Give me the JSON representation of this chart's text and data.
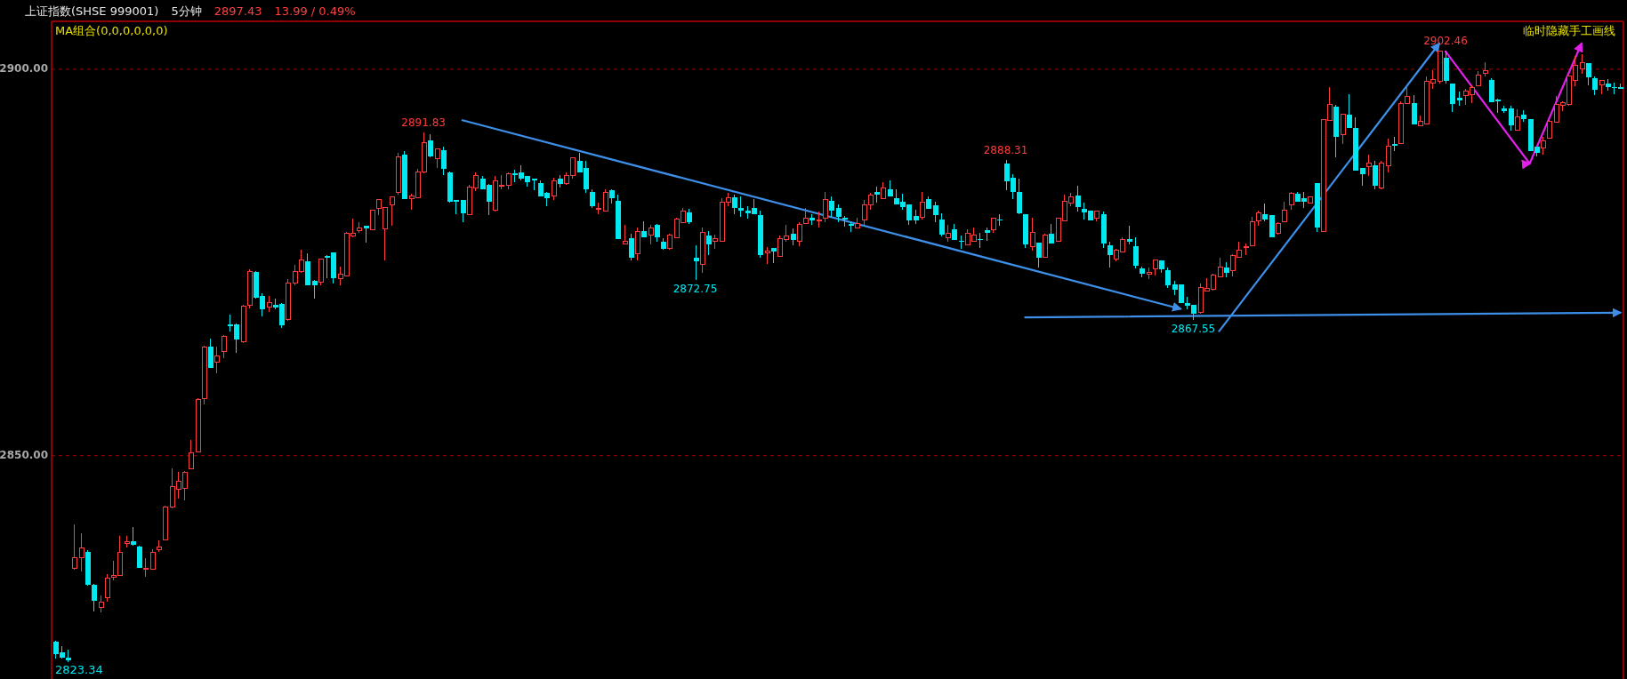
{
  "chart_data": {
    "type": "candlestick",
    "title": "上证指数(SHSE 999001)",
    "subtitle": "5分钟",
    "annotations": [
      "2897.43",
      "13.99 / 0.49%",
      "MA组合(0,0,0,0,0,0)",
      "临时隐藏手工画线",
      "2823.34",
      {
        "text": "2891.83",
        "y": 2891.83
      },
      {
        "text": "2872.75",
        "y": 2872.75
      },
      {
        "text": "2888.31",
        "y": 2888.31
      },
      {
        "text": "2867.55",
        "y": 2867.55
      },
      {
        "text": "2902.46",
        "y": 2902.46
      }
    ],
    "categories": [
      null,
      null,
      null,
      null,
      null,
      null,
      null,
      null,
      null,
      null,
      null,
      null,
      null,
      null,
      null,
      null,
      null,
      null,
      null,
      null,
      null,
      null,
      null,
      null,
      null,
      null,
      null,
      null,
      null,
      null,
      null,
      null,
      null,
      null,
      null,
      null,
      null,
      null,
      null,
      null,
      null,
      null,
      null,
      null,
      null,
      null,
      null,
      null,
      null,
      null,
      null,
      null,
      null,
      null,
      null,
      null,
      null,
      null,
      null,
      null,
      null,
      null,
      null,
      null,
      null,
      null,
      null,
      null,
      null,
      null,
      null,
      null,
      null,
      null,
      null,
      null,
      null,
      null,
      null,
      null,
      null,
      null,
      null,
      null,
      null,
      null,
      null,
      null,
      null,
      null,
      null,
      null,
      null,
      null,
      null,
      null,
      null,
      null,
      null,
      null,
      null,
      null,
      null,
      null,
      null,
      null,
      null,
      null,
      null,
      null,
      null,
      null,
      null,
      null,
      null,
      null,
      null,
      null,
      null,
      null,
      null,
      null,
      null,
      null,
      null,
      null,
      null,
      null,
      null,
      null,
      null,
      null,
      null,
      null,
      null,
      null,
      null,
      null,
      null,
      null,
      null,
      null,
      null,
      null,
      null,
      null,
      null,
      null,
      null,
      null,
      null,
      null,
      null,
      null,
      null,
      null,
      null,
      null,
      null,
      null,
      null,
      null,
      null,
      null,
      null,
      null,
      null,
      null,
      null,
      null,
      null,
      null,
      null,
      null,
      null,
      null,
      null,
      null,
      null,
      null,
      null,
      null,
      null,
      null,
      null,
      null,
      null,
      null,
      null,
      null,
      null,
      null,
      null,
      null,
      null,
      null,
      null,
      null,
      null,
      null,
      null,
      null,
      null,
      null,
      null,
      null,
      null,
      null,
      null,
      null,
      null,
      null,
      null,
      null,
      null,
      null,
      null,
      null,
      null,
      null,
      null,
      null,
      null,
      null,
      null,
      null,
      null,
      null,
      null,
      null,
      null,
      null,
      null,
      null,
      null,
      null,
      null,
      null,
      null,
      null,
      null,
      null,
      null
    ],
    "ohlc": [
      [
        2825.9,
        2826.1,
        2823.7,
        2824.3
      ],
      [
        2824.6,
        2825.3,
        2823.7,
        2823.9
      ],
      [
        2823.9,
        2824.9,
        2823.34,
        2823.5
      ],
      [
        2835.4,
        2841.1,
        2835.2,
        2836.8
      ],
      [
        2836.8,
        2840.0,
        2835.0,
        2838.1
      ],
      [
        2837.6,
        2837.8,
        2833.2,
        2833.3
      ],
      [
        2833.3,
        2833.4,
        2829.8,
        2831.2
      ],
      [
        2830.4,
        2831.9,
        2829.7,
        2831.1
      ],
      [
        2831.6,
        2834.7,
        2831.1,
        2834.1
      ],
      [
        2834.3,
        2836.4,
        2833.9,
        2834.5
      ],
      [
        2834.5,
        2839.6,
        2834.4,
        2837.5
      ],
      [
        2838.6,
        2839.6,
        2838.1,
        2838.9
      ],
      [
        2838.9,
        2840.8,
        2838.4,
        2838.5
      ],
      [
        2838.2,
        2838.3,
        2835.5,
        2835.5
      ],
      [
        2835.3,
        2836.7,
        2834.3,
        2835.4
      ],
      [
        2835.3,
        2837.9,
        2835.2,
        2837.5
      ],
      [
        2837.8,
        2839.0,
        2837.5,
        2838.2
      ],
      [
        2839.1,
        2843.5,
        2839.0,
        2843.4
      ],
      [
        2843.3,
        2848.4,
        2843.2,
        2846.0
      ],
      [
        2845.7,
        2847.9,
        2844.5,
        2846.7
      ],
      [
        2845.8,
        2848.0,
        2844.2,
        2847.8
      ],
      [
        2848.3,
        2852.0,
        2848.2,
        2850.4
      ],
      [
        2850.5,
        2857.4,
        2850.4,
        2857.3
      ],
      [
        2857.4,
        2864.2,
        2856.6,
        2864.1
      ],
      [
        2864.1,
        2865.2,
        2861.3,
        2861.4
      ],
      [
        2862.1,
        2864.1,
        2860.7,
        2862.9
      ],
      [
        2863.5,
        2865.6,
        2862.6,
        2865.4
      ],
      [
        2867.0,
        2868.3,
        2866.1,
        2866.8
      ],
      [
        2867.0,
        2867.1,
        2863.3,
        2865.0
      ],
      [
        2864.7,
        2869.5,
        2864.6,
        2869.3
      ],
      [
        2869.5,
        2874.1,
        2869.1,
        2873.8
      ],
      [
        2873.8,
        2873.9,
        2870.3,
        2870.4
      ],
      [
        2870.7,
        2871.0,
        2868.0,
        2868.9
      ],
      [
        2869.2,
        2870.7,
        2868.6,
        2869.8
      ],
      [
        2869.5,
        2870.3,
        2868.9,
        2869.2
      ],
      [
        2869.6,
        2869.7,
        2866.5,
        2866.9
      ],
      [
        2867.6,
        2872.8,
        2867.5,
        2872.3
      ],
      [
        2872.3,
        2874.7,
        2872.1,
        2873.8
      ],
      [
        2873.8,
        2876.6,
        2873.7,
        2875.3
      ],
      [
        2875.2,
        2876.2,
        2872.0,
        2872.1
      ],
      [
        2872.6,
        2872.7,
        2870.3,
        2872.1
      ],
      [
        2872.4,
        2875.5,
        2872.0,
        2875.4
      ],
      [
        2875.8,
        2875.9,
        2873.0,
        2875.6
      ],
      [
        2876.3,
        2876.3,
        2872.3,
        2873.0
      ],
      [
        2872.9,
        2874.5,
        2872.0,
        2873.5
      ],
      [
        2873.3,
        2878.9,
        2873.2,
        2878.8
      ],
      [
        2878.4,
        2880.7,
        2878.2,
        2878.8
      ],
      [
        2879.1,
        2880.2,
        2878.8,
        2879.5
      ],
      [
        2879.8,
        2879.8,
        2877.6,
        2879.4
      ],
      [
        2879.2,
        2881.8,
        2879.2,
        2881.8
      ],
      [
        2882.0,
        2883.2,
        2881.1,
        2883.2
      ],
      [
        2879.3,
        2882.2,
        2875.3,
        2882.1
      ],
      [
        2882.4,
        2883.5,
        2879.8,
        2883.5
      ],
      [
        2884.1,
        2889.2,
        2883.8,
        2888.7
      ],
      [
        2889.0,
        2889.4,
        2883.2,
        2883.2
      ],
      [
        2883.3,
        2883.9,
        2881.8,
        2883.6
      ],
      [
        2883.4,
        2887.1,
        2883.4,
        2886.7
      ],
      [
        2886.7,
        2891.83,
        2886.5,
        2890.5
      ],
      [
        2890.8,
        2891.6,
        2888.6,
        2888.7
      ],
      [
        2888.4,
        2889.7,
        2887.2,
        2889.7
      ],
      [
        2889.5,
        2890.0,
        2886.3,
        2887.1
      ],
      [
        2886.6,
        2886.8,
        2882.7,
        2882.9
      ],
      [
        2883.1,
        2883.1,
        2881.3,
        2882.8
      ],
      [
        2883.1,
        2883.1,
        2880.2,
        2881.4
      ],
      [
        2881.2,
        2885.0,
        2881.2,
        2884.7
      ],
      [
        2884.6,
        2886.6,
        2884.2,
        2886.2
      ],
      [
        2885.8,
        2886.2,
        2884.5,
        2884.5
      ],
      [
        2885.0,
        2885.2,
        2881.1,
        2882.8
      ],
      [
        2881.8,
        2886.2,
        2881.6,
        2885.6
      ],
      [
        2884.9,
        2886.3,
        2884.5,
        2885.0
      ],
      [
        2885.0,
        2886.7,
        2884.5,
        2886.5
      ],
      [
        2886.5,
        2887.0,
        2885.4,
        2886.3
      ],
      [
        2886.6,
        2887.6,
        2885.6,
        2885.9
      ],
      [
        2886.2,
        2886.2,
        2884.8,
        2885.4
      ],
      [
        2885.8,
        2885.8,
        2884.4,
        2885.6
      ],
      [
        2885.3,
        2885.6,
        2883.5,
        2883.5
      ],
      [
        2884.0,
        2884.1,
        2882.3,
        2883.3
      ],
      [
        2883.6,
        2886.0,
        2883.1,
        2885.6
      ],
      [
        2885.8,
        2886.3,
        2884.7,
        2885.1
      ],
      [
        2885.2,
        2886.6,
        2885.0,
        2886.3
      ],
      [
        2886.2,
        2888.5,
        2885.8,
        2888.5
      ],
      [
        2888.2,
        2889.2,
        2886.6,
        2886.6
      ],
      [
        2887.2,
        2888.1,
        2884.0,
        2884.5
      ],
      [
        2884.1,
        2884.5,
        2882.0,
        2882.3
      ],
      [
        2881.9,
        2882.7,
        2881.2,
        2882.0
      ],
      [
        2881.6,
        2884.5,
        2881.6,
        2884.1
      ],
      [
        2884.4,
        2884.5,
        2882.6,
        2883.3
      ],
      [
        2883.0,
        2883.8,
        2878.0,
        2878.0
      ],
      [
        2877.4,
        2879.9,
        2877.4,
        2877.7
      ],
      [
        2878.1,
        2878.7,
        2875.3,
        2875.6
      ],
      [
        2876.1,
        2879.5,
        2875.3,
        2879.0
      ],
      [
        2879.1,
        2880.3,
        2878.2,
        2878.2
      ],
      [
        2878.5,
        2879.9,
        2877.3,
        2879.5
      ],
      [
        2879.9,
        2880.0,
        2877.7,
        2878.2
      ],
      [
        2877.7,
        2878.1,
        2876.6,
        2876.8
      ],
      [
        2876.8,
        2878.7,
        2876.7,
        2878.6
      ],
      [
        2878.2,
        2880.8,
        2878.1,
        2880.6
      ],
      [
        2880.2,
        2882.1,
        2880.2,
        2881.6
      ],
      [
        2881.5,
        2881.9,
        2880.0,
        2880.2
      ],
      [
        2875.6,
        2877.2,
        2872.75,
        2875.2
      ],
      [
        2874.8,
        2879.5,
        2873.6,
        2878.9
      ],
      [
        2878.5,
        2879.1,
        2876.0,
        2877.3
      ],
      [
        2877.7,
        2878.6,
        2876.8,
        2878.1
      ],
      [
        2877.7,
        2883.3,
        2877.7,
        2882.8
      ],
      [
        2882.8,
        2884.0,
        2882.3,
        2883.4
      ],
      [
        2883.4,
        2883.8,
        2881.2,
        2882.0
      ],
      [
        2882.0,
        2883.6,
        2880.9,
        2881.7
      ],
      [
        2881.7,
        2882.3,
        2880.7,
        2881.4
      ],
      [
        2882.0,
        2883.2,
        2881.3,
        2881.3
      ],
      [
        2881.1,
        2881.7,
        2875.6,
        2876.0
      ],
      [
        2876.2,
        2877.0,
        2874.8,
        2876.5
      ],
      [
        2876.9,
        2876.9,
        2874.9,
        2876.4
      ],
      [
        2875.8,
        2878.5,
        2875.7,
        2878.1
      ],
      [
        2878.0,
        2879.9,
        2877.7,
        2878.4
      ],
      [
        2878.7,
        2879.4,
        2877.2,
        2877.9
      ],
      [
        2877.7,
        2880.2,
        2877.1,
        2879.9
      ],
      [
        2880.0,
        2882.0,
        2880.0,
        2880.7
      ],
      [
        2880.8,
        2881.3,
        2879.9,
        2880.4
      ],
      [
        2880.4,
        2881.6,
        2879.5,
        2880.5
      ],
      [
        2880.7,
        2884.1,
        2880.2,
        2883.1
      ],
      [
        2883.0,
        2883.5,
        2880.9,
        2881.7
      ],
      [
        2882.1,
        2882.5,
        2880.2,
        2880.9
      ],
      [
        2880.8,
        2881.0,
        2879.6,
        2880.6
      ],
      [
        2880.0,
        2880.2,
        2879.0,
        2879.8
      ],
      [
        2879.5,
        2880.8,
        2879.4,
        2880.0
      ],
      [
        2880.5,
        2883.1,
        2879.9,
        2882.5
      ],
      [
        2882.5,
        2884.0,
        2881.8,
        2883.7
      ],
      [
        2884.1,
        2884.8,
        2882.7,
        2883.8
      ],
      [
        2883.3,
        2885.4,
        2883.2,
        2884.6
      ],
      [
        2884.5,
        2885.6,
        2883.6,
        2883.6
      ],
      [
        2883.3,
        2884.5,
        2882.5,
        2882.5
      ],
      [
        2882.9,
        2883.9,
        2881.8,
        2882.2
      ],
      [
        2882.5,
        2882.5,
        2879.9,
        2880.4
      ],
      [
        2881.0,
        2881.8,
        2880.0,
        2880.4
      ],
      [
        2880.8,
        2884.1,
        2880.6,
        2882.8
      ],
      [
        2883.2,
        2883.5,
        2881.9,
        2881.9
      ],
      [
        2882.4,
        2882.8,
        2880.2,
        2881.1
      ],
      [
        2880.5,
        2881.4,
        2878.4,
        2878.6
      ],
      [
        2878.2,
        2879.9,
        2877.7,
        2878.8
      ],
      [
        2879.3,
        2880.0,
        2877.9,
        2877.9
      ],
      [
        2877.8,
        2878.5,
        2876.8,
        2877.7
      ],
      [
        2877.3,
        2879.3,
        2877.3,
        2878.8
      ],
      [
        2877.7,
        2879.5,
        2877.7,
        2878.5
      ],
      [
        2878.0,
        2878.8,
        2876.9,
        2877.9
      ],
      [
        2879.2,
        2879.5,
        2877.8,
        2878.8
      ],
      [
        2879.2,
        2880.7,
        2878.8,
        2880.7
      ],
      [
        2880.6,
        2881.2,
        2879.7,
        2880.4
      ],
      [
        2887.8,
        2888.31,
        2884.4,
        2885.5
      ],
      [
        2886.0,
        2886.4,
        2883.2,
        2884.1
      ],
      [
        2884.1,
        2885.8,
        2881.2,
        2881.4
      ],
      [
        2881.3,
        2881.3,
        2876.9,
        2877.3
      ],
      [
        2877.0,
        2880.8,
        2876.5,
        2878.9
      ],
      [
        2877.6,
        2877.6,
        2874.4,
        2875.6
      ],
      [
        2875.7,
        2878.7,
        2875.6,
        2878.5
      ],
      [
        2878.7,
        2880.0,
        2877.4,
        2877.4
      ],
      [
        2877.7,
        2880.7,
        2877.7,
        2880.7
      ],
      [
        2880.4,
        2883.8,
        2880.4,
        2882.9
      ],
      [
        2882.7,
        2884.0,
        2882.3,
        2883.5
      ],
      [
        2883.7,
        2884.9,
        2881.6,
        2882.2
      ],
      [
        2881.9,
        2882.7,
        2880.6,
        2881.5
      ],
      [
        2881.7,
        2881.7,
        2880.4,
        2880.4
      ],
      [
        2880.7,
        2881.6,
        2880.3,
        2881.6
      ],
      [
        2881.2,
        2881.6,
        2876.9,
        2877.4
      ],
      [
        2877.2,
        2877.7,
        2874.3,
        2875.9
      ],
      [
        2875.4,
        2876.8,
        2875.2,
        2876.6
      ],
      [
        2876.4,
        2878.2,
        2876.4,
        2878.0
      ],
      [
        2878.0,
        2879.7,
        2877.3,
        2877.7
      ],
      [
        2877.1,
        2878.2,
        2874.2,
        2874.6
      ],
      [
        2874.2,
        2874.5,
        2873.1,
        2873.5
      ],
      [
        2873.5,
        2874.4,
        2872.8,
        2873.7
      ],
      [
        2874.2,
        2875.3,
        2873.3,
        2875.3
      ],
      [
        2875.3,
        2875.3,
        2873.6,
        2874.1
      ],
      [
        2874.0,
        2874.3,
        2871.7,
        2872.1
      ],
      [
        2872.2,
        2872.6,
        2870.8,
        2871.5
      ],
      [
        2872.2,
        2872.2,
        2869.7,
        2869.7
      ],
      [
        2869.8,
        2870.5,
        2868.9,
        2869.4
      ],
      [
        2869.5,
        2869.5,
        2867.55,
        2868.4
      ],
      [
        2868.5,
        2872.3,
        2868.4,
        2871.8
      ],
      [
        2871.3,
        2873.0,
        2871.3,
        2871.7
      ],
      [
        2871.5,
        2873.5,
        2871.3,
        2873.4
      ],
      [
        2873.1,
        2875.6,
        2873.1,
        2874.4
      ],
      [
        2874.4,
        2875.0,
        2873.1,
        2873.7
      ],
      [
        2873.9,
        2876.1,
        2873.2,
        2875.9
      ],
      [
        2875.7,
        2877.7,
        2875.6,
        2876.6
      ],
      [
        2876.9,
        2877.4,
        2875.9,
        2877.0
      ],
      [
        2877.2,
        2880.9,
        2877.2,
        2880.3
      ],
      [
        2880.4,
        2881.7,
        2879.7,
        2881.4
      ],
      [
        2881.3,
        2882.6,
        2880.3,
        2880.6
      ],
      [
        2881.1,
        2881.1,
        2878.2,
        2878.3
      ],
      [
        2878.8,
        2880.2,
        2878.6,
        2880.0
      ],
      [
        2880.3,
        2882.8,
        2880.3,
        2881.8
      ],
      [
        2882.5,
        2884.1,
        2881.8,
        2883.9
      ],
      [
        2883.9,
        2884.1,
        2882.8,
        2882.9
      ],
      [
        2883.3,
        2884.1,
        2882.0,
        2882.9
      ],
      [
        2882.7,
        2883.6,
        2882.6,
        2883.5
      ],
      [
        2885.3,
        2885.3,
        2878.9,
        2879.5
      ],
      [
        2879.0,
        2893.5,
        2879.0,
        2893.5
      ],
      [
        2893.4,
        2897.7,
        2893.4,
        2895.4
      ],
      [
        2895.2,
        2895.4,
        2888.6,
        2891.2
      ],
      [
        2891.5,
        2894.2,
        2890.3,
        2894.2
      ],
      [
        2894.1,
        2896.8,
        2892.4,
        2892.4
      ],
      [
        2892.4,
        2893.8,
        2886.9,
        2886.9
      ],
      [
        2887.2,
        2887.2,
        2884.9,
        2886.4
      ],
      [
        2887.4,
        2888.9,
        2886.2,
        2887.9
      ],
      [
        2887.6,
        2888.1,
        2884.5,
        2884.9
      ],
      [
        2884.6,
        2888.1,
        2884.5,
        2887.9
      ],
      [
        2887.5,
        2891.0,
        2886.7,
        2890.1
      ],
      [
        2890.3,
        2891.3,
        2889.4,
        2890.1
      ],
      [
        2890.4,
        2895.9,
        2890.4,
        2895.6
      ],
      [
        2895.6,
        2897.9,
        2895.6,
        2896.5
      ],
      [
        2895.6,
        2896.6,
        2892.9,
        2892.9
      ],
      [
        2892.7,
        2894.0,
        2892.6,
        2893.3
      ],
      [
        2892.9,
        2899.1,
        2892.9,
        2898.4
      ],
      [
        2898.2,
        2899.9,
        2897.5,
        2898.7
      ],
      [
        2898.4,
        2902.3,
        2898.2,
        2902.3
      ],
      [
        2901.5,
        2902.46,
        2898.1,
        2898.5
      ],
      [
        2898.1,
        2898.1,
        2894.5,
        2895.5
      ],
      [
        2896.3,
        2897.1,
        2895.3,
        2896.0
      ],
      [
        2896.6,
        2897.5,
        2895.4,
        2897.2
      ],
      [
        2896.7,
        2897.9,
        2895.6,
        2897.6
      ],
      [
        2897.9,
        2899.8,
        2897.9,
        2899.3
      ],
      [
        2899.5,
        2900.9,
        2899.1,
        2899.8
      ],
      [
        2898.6,
        2898.8,
        2895.7,
        2895.7
      ],
      [
        2896.1,
        2896.2,
        2894.4,
        2895.8
      ],
      [
        2894.9,
        2895.3,
        2894.3,
        2894.6
      ],
      [
        2894.9,
        2895.3,
        2892.1,
        2892.7
      ],
      [
        2892.1,
        2894.8,
        2892.1,
        2893.8
      ],
      [
        2894.1,
        2894.7,
        2893.2,
        2893.5
      ],
      [
        2893.5,
        2893.5,
        2889.4,
        2889.4
      ],
      [
        2890.0,
        2890.0,
        2888.7,
        2889.2
      ],
      [
        2889.8,
        2891.3,
        2889.0,
        2890.7
      ],
      [
        2891.1,
        2893.8,
        2891.1,
        2893.3
      ],
      [
        2893.1,
        2896.5,
        2893.1,
        2895.4
      ],
      [
        2895.3,
        2895.9,
        2894.6,
        2895.7
      ],
      [
        2895.4,
        2899.1,
        2895.3,
        2899.1
      ],
      [
        2898.5,
        2901.7,
        2897.8,
        2900.5
      ],
      [
        2900.0,
        2902.0,
        2899.4,
        2900.9
      ],
      [
        2900.8,
        2900.8,
        2897.9,
        2899.0
      ],
      [
        2898.8,
        2899.1,
        2896.7,
        2897.3
      ],
      [
        2898.0,
        2898.5,
        2896.8,
        2898.5
      ],
      [
        2898.1,
        2898.7,
        2897.2,
        2897.7
      ],
      [
        2897.7,
        2898.3,
        2896.8,
        2897.6
      ],
      [
        2897.7,
        2898.2,
        2897.43,
        2897.43
      ]
    ],
    "series": [
      {
        "type": "line",
        "color": "#3d8fe8",
        "values": [
          null,
          null,
          null,
          null,
          null,
          null,
          null,
          null,
          null,
          null,
          null,
          null,
          null,
          null,
          null,
          null,
          null,
          null,
          null,
          null,
          null,
          null,
          null,
          null,
          null,
          null,
          null,
          null,
          null,
          null,
          null,
          null,
          null,
          null,
          null,
          null,
          null,
          null,
          null,
          null,
          null,
          null,
          null,
          null,
          null,
          null,
          null,
          null,
          null,
          null,
          null,
          null,
          null,
          null,
          null,
          null,
          null,
          null,
          null,
          null,
          null,
          null,
          null,
          2893.4,
          null,
          null,
          null,
          null,
          null,
          null,
          null,
          null,
          null,
          null,
          null,
          null,
          null,
          null,
          null,
          null,
          null,
          null,
          null,
          null,
          null,
          null,
          null,
          null,
          null,
          null,
          null,
          null,
          null,
          null,
          null,
          null,
          null,
          null,
          null,
          null,
          null,
          null,
          null,
          null,
          null,
          null,
          null,
          null,
          null,
          null,
          null,
          null,
          null,
          null,
          null,
          null,
          null,
          null,
          null,
          null,
          null,
          null,
          null,
          null,
          null,
          null,
          null,
          null,
          null,
          null,
          null,
          null,
          null,
          null,
          null,
          null,
          null,
          null,
          null,
          null,
          null,
          null,
          null,
          null,
          null,
          null,
          null,
          null,
          null,
          null,
          null,
          null,
          null,
          null,
          null,
          null,
          null,
          null,
          null,
          null,
          null,
          null,
          null,
          null,
          null,
          null,
          null,
          null,
          null,
          null,
          null,
          null,
          null,
          null,
          2869.0,
          null,
          null,
          null,
          null,
          null,
          null,
          null,
          null,
          null,
          null,
          null,
          null,
          null,
          null,
          null,
          null,
          null,
          null,
          null,
          null,
          null,
          null,
          null,
          null,
          null,
          null,
          null,
          null,
          null,
          null,
          null,
          null,
          null,
          null,
          null,
          null,
          null,
          null,
          null,
          null,
          null,
          null,
          null,
          null,
          null,
          null,
          null,
          null,
          null,
          null,
          null,
          null,
          null,
          null,
          null,
          null,
          null,
          null,
          null,
          null,
          null,
          null,
          null,
          null,
          null,
          null,
          null,
          null
        ]
      },
      {
        "type": "line",
        "color": "#3d8fe8",
        "values": [
          null,
          null,
          null,
          null,
          null,
          null,
          null,
          null,
          null,
          null,
          null,
          null,
          null,
          null,
          null,
          null,
          null,
          null,
          null,
          null,
          null,
          null,
          null,
          null,
          null,
          null,
          null,
          null,
          null,
          null,
          null,
          null,
          null,
          null,
          null,
          null,
          null,
          null,
          null,
          null,
          null,
          null,
          null,
          null,
          null,
          null,
          null,
          null,
          null,
          null,
          null,
          null,
          null,
          null,
          null,
          null,
          null,
          null,
          null,
          null,
          null,
          null,
          null,
          null,
          null,
          null,
          null,
          null,
          null,
          null,
          null,
          null,
          null,
          null,
          null,
          null,
          null,
          null,
          null,
          null,
          null,
          null,
          null,
          null,
          null,
          null,
          null,
          null,
          null,
          null,
          null,
          null,
          null,
          null,
          null,
          null,
          null,
          null,
          null,
          null,
          null,
          null,
          null,
          null,
          null,
          null,
          null,
          null,
          null,
          null,
          null,
          null,
          null,
          null,
          null,
          null,
          null,
          null,
          null,
          null,
          null,
          null,
          null,
          null,
          null,
          null,
          null,
          null,
          null,
          null,
          null,
          null,
          null,
          null,
          null,
          null,
          null,
          null,
          null,
          null,
          null,
          null,
          null,
          null,
          null,
          null,
          null,
          null,
          null,
          null,
          2867.9,
          null,
          null,
          null,
          null,
          null,
          null,
          null,
          null,
          null,
          null,
          null,
          null,
          null,
          null,
          null,
          null,
          null,
          null,
          null,
          null,
          null,
          null,
          null,
          null,
          null,
          null,
          null,
          null,
          null,
          null,
          null,
          null,
          null,
          null,
          null,
          null,
          null,
          null,
          null,
          null,
          null,
          null,
          null,
          null,
          null,
          null,
          null,
          null,
          null,
          null,
          null,
          null,
          null,
          null,
          null,
          null,
          null,
          null,
          null,
          null,
          null,
          null,
          null,
          null,
          null,
          null,
          null,
          null,
          null,
          null,
          null,
          null,
          null,
          null,
          null,
          null,
          null,
          null,
          null,
          null,
          null,
          null,
          null,
          null,
          null,
          null,
          null,
          null,
          null,
          null,
          null,
          2868.5
        ]
      },
      {
        "type": "line",
        "color": "#3d8fe8",
        "values": [
          null,
          null,
          null,
          null,
          null,
          null,
          null,
          null,
          null,
          null,
          null,
          null,
          null,
          null,
          null,
          null,
          null,
          null,
          null,
          null,
          null,
          null,
          null,
          null,
          null,
          null,
          null,
          null,
          null,
          null,
          null,
          null,
          null,
          null,
          null,
          null,
          null,
          null,
          null,
          null,
          null,
          null,
          null,
          null,
          null,
          null,
          null,
          null,
          null,
          null,
          null,
          null,
          null,
          null,
          null,
          null,
          null,
          null,
          null,
          null,
          null,
          null,
          null,
          null,
          null,
          null,
          null,
          null,
          null,
          null,
          null,
          null,
          null,
          null,
          null,
          null,
          null,
          null,
          null,
          null,
          null,
          null,
          null,
          null,
          null,
          null,
          null,
          null,
          null,
          null,
          null,
          null,
          null,
          null,
          null,
          null,
          null,
          null,
          null,
          null,
          null,
          null,
          null,
          null,
          null,
          null,
          null,
          null,
          null,
          null,
          null,
          null,
          null,
          null,
          null,
          null,
          null,
          null,
          null,
          null,
          null,
          null,
          null,
          null,
          null,
          null,
          null,
          null,
          null,
          null,
          null,
          null,
          null,
          null,
          null,
          null,
          null,
          null,
          null,
          null,
          null,
          null,
          null,
          null,
          null,
          null,
          null,
          null,
          null,
          null,
          null,
          null,
          null,
          null,
          null,
          null,
          null,
          null,
          null,
          null,
          null,
          null,
          null,
          null,
          null,
          null,
          null,
          null,
          null,
          null,
          null,
          null,
          null,
          null,
          null,
          null,
          null,
          null,
          null,
          null,
          2866.1,
          null,
          null,
          null,
          null,
          null,
          null,
          null,
          null,
          null,
          null,
          null,
          null,
          null,
          null,
          null,
          null,
          null,
          null,
          null,
          null,
          null,
          null,
          null,
          null,
          null,
          null,
          null,
          null,
          null,
          null,
          null,
          null,
          null,
          2903.3,
          null,
          null,
          null,
          null,
          null,
          null,
          null,
          null,
          null,
          null,
          null,
          null,
          null,
          null,
          null,
          null,
          null,
          null,
          null,
          null,
          null,
          null,
          null,
          null,
          null,
          null,
          null,
          null
        ]
      },
      {
        "type": "line",
        "color": "#e020e8",
        "values": [
          null,
          null,
          null,
          null,
          null,
          null,
          null,
          null,
          null,
          null,
          null,
          null,
          null,
          null,
          null,
          null,
          null,
          null,
          null,
          null,
          null,
          null,
          null,
          null,
          null,
          null,
          null,
          null,
          null,
          null,
          null,
          null,
          null,
          null,
          null,
          null,
          null,
          null,
          null,
          null,
          null,
          null,
          null,
          null,
          null,
          null,
          null,
          null,
          null,
          null,
          null,
          null,
          null,
          null,
          null,
          null,
          null,
          null,
          null,
          null,
          null,
          null,
          null,
          null,
          null,
          null,
          null,
          null,
          null,
          null,
          null,
          null,
          null,
          null,
          null,
          null,
          null,
          null,
          null,
          null,
          null,
          null,
          null,
          null,
          null,
          null,
          null,
          null,
          null,
          null,
          null,
          null,
          null,
          null,
          null,
          null,
          null,
          null,
          null,
          null,
          null,
          null,
          null,
          null,
          null,
          null,
          null,
          null,
          null,
          null,
          null,
          null,
          null,
          null,
          null,
          null,
          null,
          null,
          null,
          null,
          null,
          null,
          null,
          null,
          null,
          null,
          null,
          null,
          null,
          null,
          null,
          null,
          null,
          null,
          null,
          null,
          null,
          null,
          null,
          null,
          null,
          null,
          null,
          null,
          null,
          null,
          null,
          null,
          null,
          null,
          null,
          null,
          null,
          null,
          null,
          null,
          null,
          null,
          null,
          null,
          null,
          null,
          null,
          null,
          null,
          null,
          null,
          null,
          null,
          null,
          null,
          null,
          null,
          null,
          null,
          null,
          null,
          null,
          null,
          null,
          null,
          null,
          null,
          null,
          null,
          null,
          null,
          null,
          null,
          null,
          null,
          null,
          null,
          null,
          null,
          null,
          null,
          null,
          null,
          null,
          null,
          null,
          null,
          null,
          null,
          null,
          null,
          null,
          null,
          null,
          null,
          null,
          null,
          null,
          null,
          2902.3,
          null,
          null,
          null,
          null,
          null,
          null,
          null,
          null,
          null,
          null,
          null,
          null,
          2887.8,
          null,
          null,
          null,
          null,
          null,
          null,
          null,
          2903.3,
          null,
          null,
          null,
          null,
          null,
          null
        ]
      }
    ],
    "ylim": [
      2821.1,
      2906.2
    ],
    "yticks": [
      {
        "value": 2850,
        "label": "2850.00"
      },
      {
        "value": 2900,
        "label": "2900.00"
      }
    ],
    "grid": "y",
    "tick_labels": "y"
  }
}
